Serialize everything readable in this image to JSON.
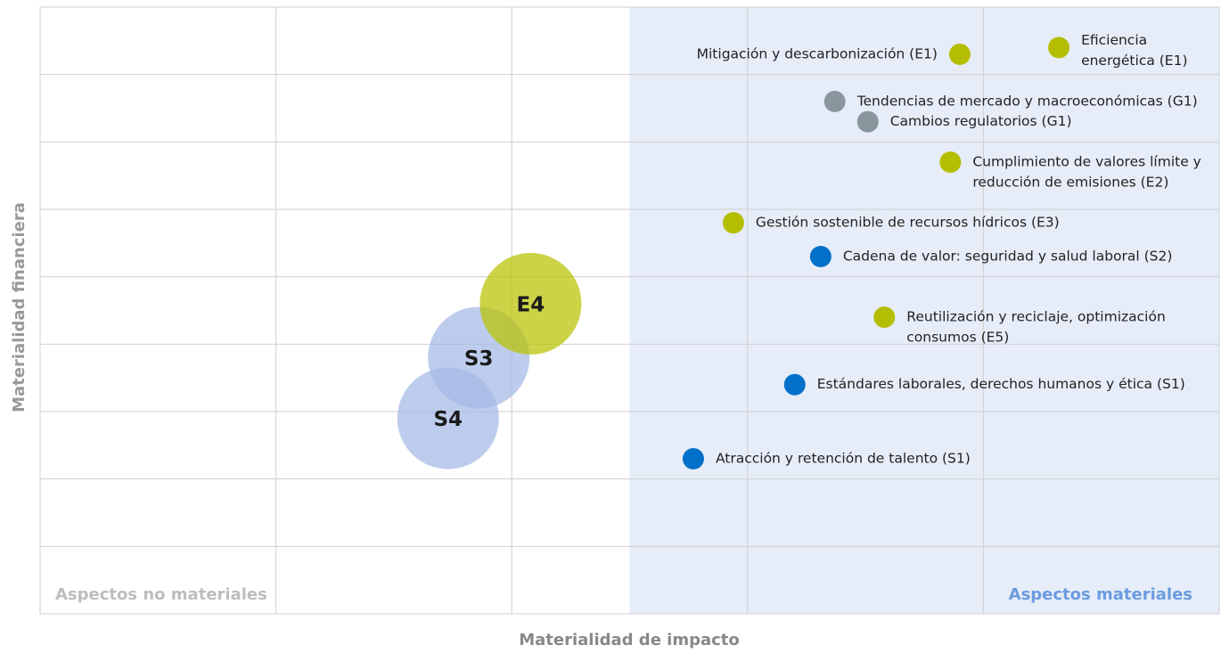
{
  "chart_data": {
    "type": "scatter",
    "xlabel": "Materialidad de impacto",
    "ylabel": "Materialidad financiera",
    "xlim": [
      0,
      5
    ],
    "ylim": [
      0,
      9
    ],
    "xticks": [
      0,
      1,
      2,
      3,
      4,
      5
    ],
    "yticks": [
      0,
      1,
      2,
      3,
      4,
      5,
      6,
      7,
      8,
      9
    ],
    "grid": true,
    "material_threshold": 2.5,
    "region_labels": [
      "Aspectos no materiales",
      "Aspectos materiales"
    ],
    "points": [
      {
        "label": [
          "Mitigación y descarbonización (E1)"
        ],
        "x": 3.9,
        "y": 8.3,
        "color": "#b5bd00"
      },
      {
        "label": [
          "Eficiencia",
          "energética (E1)"
        ],
        "x": 4.32,
        "y": 8.4,
        "color": "#b5bd00"
      },
      {
        "label": [
          "Tendencias de mercado y macroeconómicas (G1)"
        ],
        "x": 3.37,
        "y": 7.6,
        "color": "#8a969e"
      },
      {
        "label": [
          "Cambios regulatorios (G1)"
        ],
        "x": 3.51,
        "y": 7.3,
        "color": "#8a969e"
      },
      {
        "label": [
          "Cumplimiento de valores límite y",
          "reducción de emisiones (E2)"
        ],
        "x": 3.86,
        "y": 6.7,
        "color": "#b5bd00"
      },
      {
        "label": [
          "Gestión sostenible de recursos hídricos (E3)"
        ],
        "x": 2.94,
        "y": 5.8,
        "color": "#b5bd00"
      },
      {
        "label": [
          "Cadena de valor: seguridad y salud laboral (S2)"
        ],
        "x": 3.31,
        "y": 5.3,
        "color": "#0070c9"
      },
      {
        "label": [
          "Reutilización y reciclaje, optimización",
          "consumos (E5)"
        ],
        "x": 3.58,
        "y": 4.4,
        "color": "#b5bd00"
      },
      {
        "label": [
          "Estándares laborales, derechos humanos y ética (S1)"
        ],
        "x": 3.2,
        "y": 3.4,
        "color": "#0070c9"
      },
      {
        "label": [
          "Atracción y retención de talento (S1)"
        ],
        "x": 2.77,
        "y": 2.3,
        "color": "#0070c9"
      }
    ],
    "bubbles": [
      {
        "label": "S4",
        "x": 1.73,
        "y": 2.9,
        "color": "#a3b8e4"
      },
      {
        "label": "S3",
        "x": 1.86,
        "y": 3.8,
        "color": "#a3b8e4"
      },
      {
        "label": "E4",
        "x": 2.08,
        "y": 4.6,
        "color": "#b9c200"
      }
    ]
  }
}
